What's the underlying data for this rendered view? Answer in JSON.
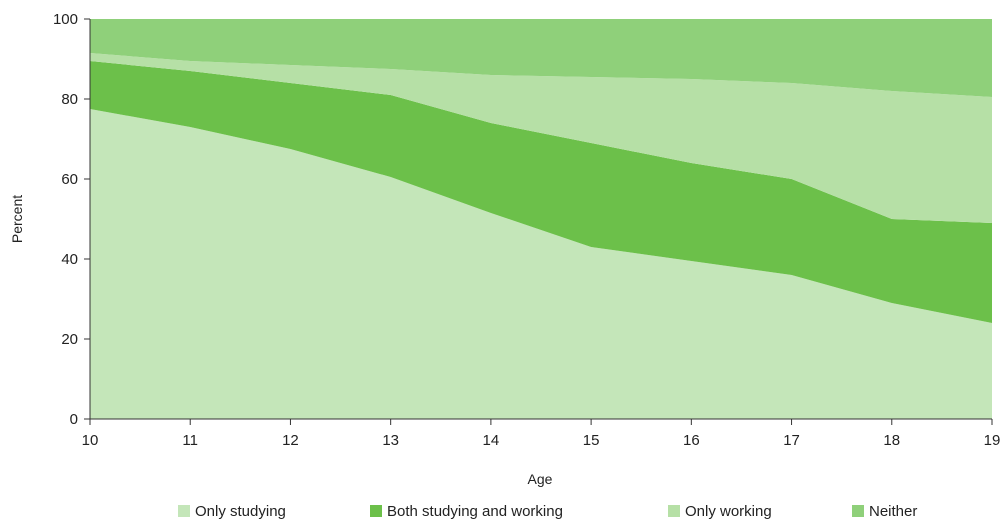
{
  "chart_data": {
    "type": "area",
    "stacked": true,
    "title": "",
    "xlabel": "Age",
    "ylabel": "Percent",
    "x": [
      10,
      11,
      12,
      13,
      14,
      15,
      16,
      17,
      18,
      19
    ],
    "xlim": [
      10,
      19
    ],
    "ylim": [
      0,
      100
    ],
    "x_ticks": [
      "10",
      "11",
      "12",
      "13",
      "14",
      "15",
      "16",
      "17",
      "18",
      "19"
    ],
    "y_ticks": [
      "0",
      "20",
      "40",
      "60",
      "80",
      "100"
    ],
    "grid": false,
    "legend_position": "bottom",
    "series": [
      {
        "name": "Only studying",
        "color": "#c4e6b9",
        "values": [
          77.5,
          73.0,
          67.5,
          60.5,
          51.5,
          43.0,
          39.5,
          36.0,
          29.0,
          24.0
        ]
      },
      {
        "name": "Both studying and working",
        "color": "#6cc04a",
        "values": [
          12.0,
          14.0,
          16.5,
          20.5,
          22.5,
          26.0,
          24.5,
          24.0,
          21.0,
          25.0
        ]
      },
      {
        "name": "Only working",
        "color": "#b6e0a6",
        "values": [
          2.0,
          2.5,
          4.5,
          6.5,
          12.0,
          16.5,
          21.0,
          24.0,
          32.0,
          31.5
        ]
      },
      {
        "name": "Neither",
        "color": "#8fd07a",
        "values": [
          8.5,
          10.5,
          11.5,
          12.5,
          14.0,
          14.5,
          15.0,
          16.0,
          18.0,
          19.5
        ]
      }
    ]
  }
}
